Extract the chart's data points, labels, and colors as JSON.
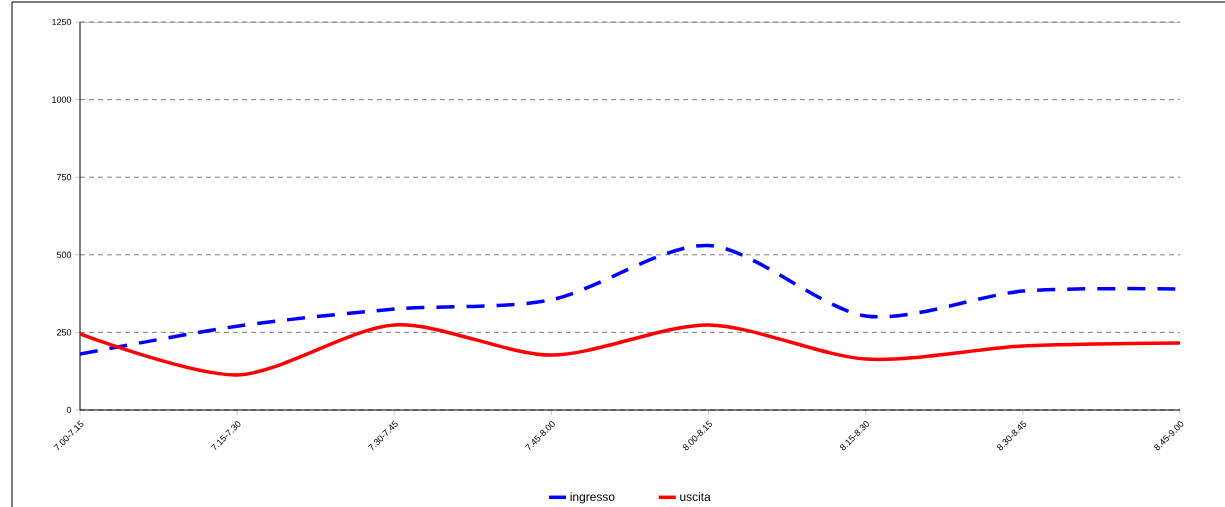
{
  "chart_data": {
    "type": "line",
    "categories": [
      "7.00-7.15",
      "7.15-7.30",
      "7.30-7.45",
      "7.45-8.00",
      "8.00-8.15",
      "8.15-8.30",
      "8.30-8.45",
      "8.45-9.00"
    ],
    "series": [
      {
        "name": "ingresso",
        "color": "#0000ff",
        "line_style": "dashed",
        "values": [
          180,
          270,
          325,
          355,
          530,
          303,
          383,
          390
        ]
      },
      {
        "name": "uscita",
        "color": "#ff0000",
        "line_style": "solid",
        "values": [
          245,
          113,
          274,
          177,
          274,
          164,
          206,
          216
        ]
      }
    ],
    "ylim": [
      0,
      1250
    ],
    "yticks": [
      0,
      250,
      500,
      750,
      1000,
      1250
    ],
    "grid": "y",
    "legend": "bottom",
    "marker": "none"
  }
}
